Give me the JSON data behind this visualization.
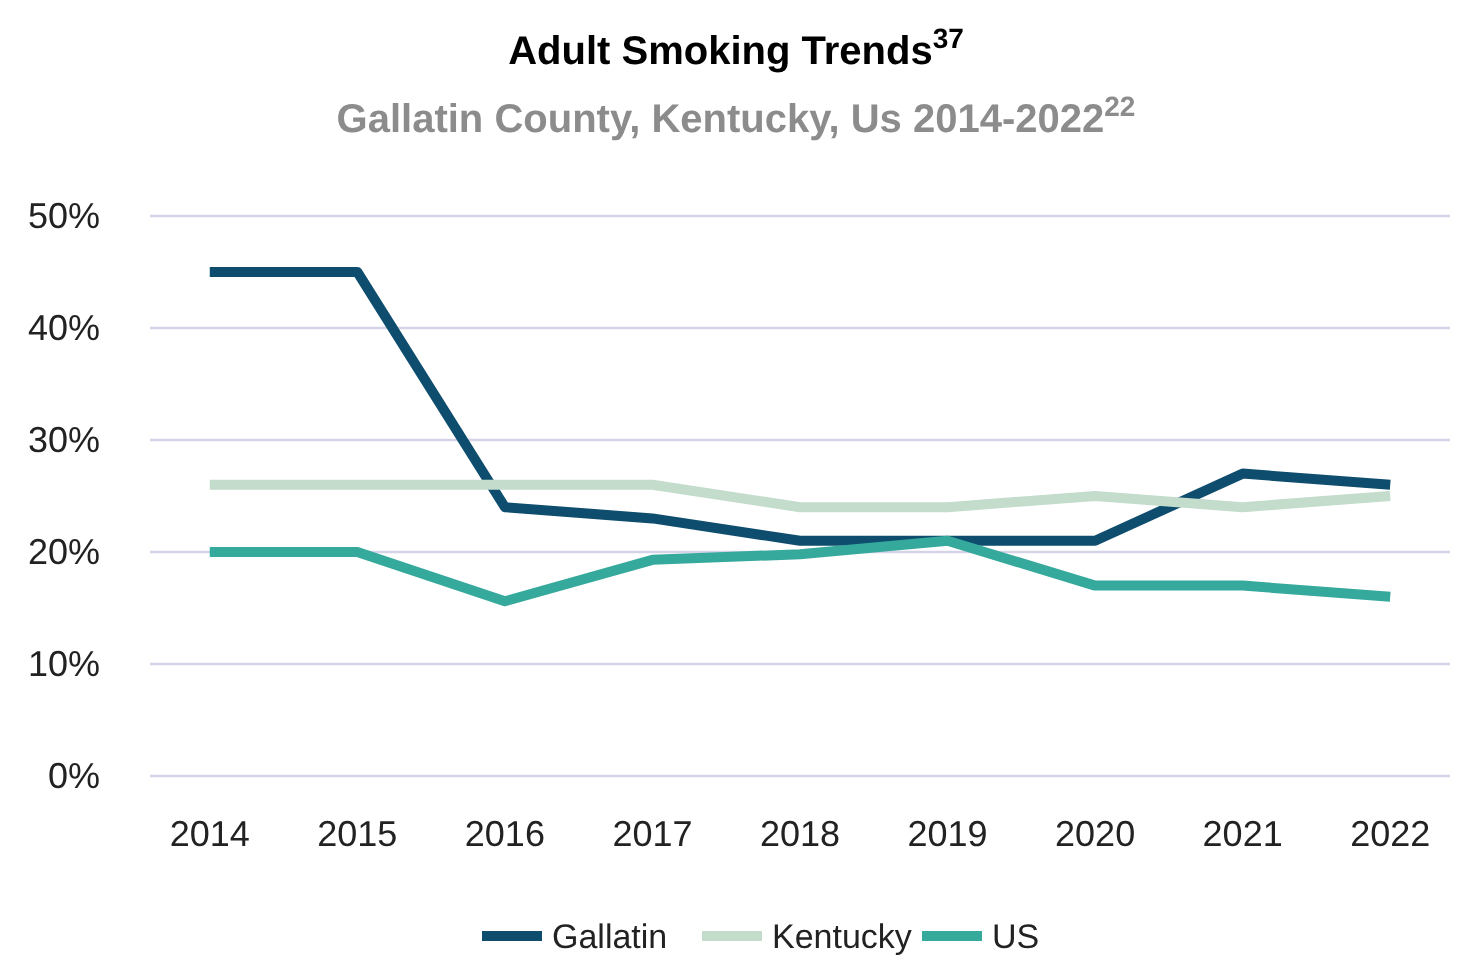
{
  "chart_data": {
    "type": "line",
    "title": "Adult Smoking Trends$^{37}$",
    "subtitle": "Gallatin County, Kentucky, Us 2014-2022$^{22}$",
    "categories": [
      "2014",
      "2015",
      "2016",
      "2017",
      "2018",
      "2019",
      "2020",
      "2021",
      "2022"
    ],
    "series": [
      {
        "name": "Gallatin",
        "color": "#0e4d6e",
        "values": [
          45,
          45,
          24,
          23,
          21,
          21,
          21,
          27,
          26
        ]
      },
      {
        "name": "Kentucky",
        "color": "#c3dccb",
        "values": [
          26,
          26,
          26,
          26,
          24,
          24,
          25,
          24,
          25
        ]
      },
      {
        "name": "US",
        "color": "#35a99b",
        "values": [
          20,
          20,
          15.6,
          19.3,
          19.8,
          21,
          17,
          17,
          16
        ]
      }
    ],
    "ylim": [
      0,
      50
    ],
    "yticks": [
      {
        "value": 0,
        "label": "0%"
      },
      {
        "value": 10,
        "label": "10%"
      },
      {
        "value": 20,
        "label": "20%"
      },
      {
        "value": 30,
        "label": "30%"
      },
      {
        "value": 40,
        "label": "40%"
      },
      {
        "value": 50,
        "label": "50%"
      }
    ],
    "grid": "y",
    "legend": "bottom",
    "marker": "none",
    "line_style": "solid"
  }
}
